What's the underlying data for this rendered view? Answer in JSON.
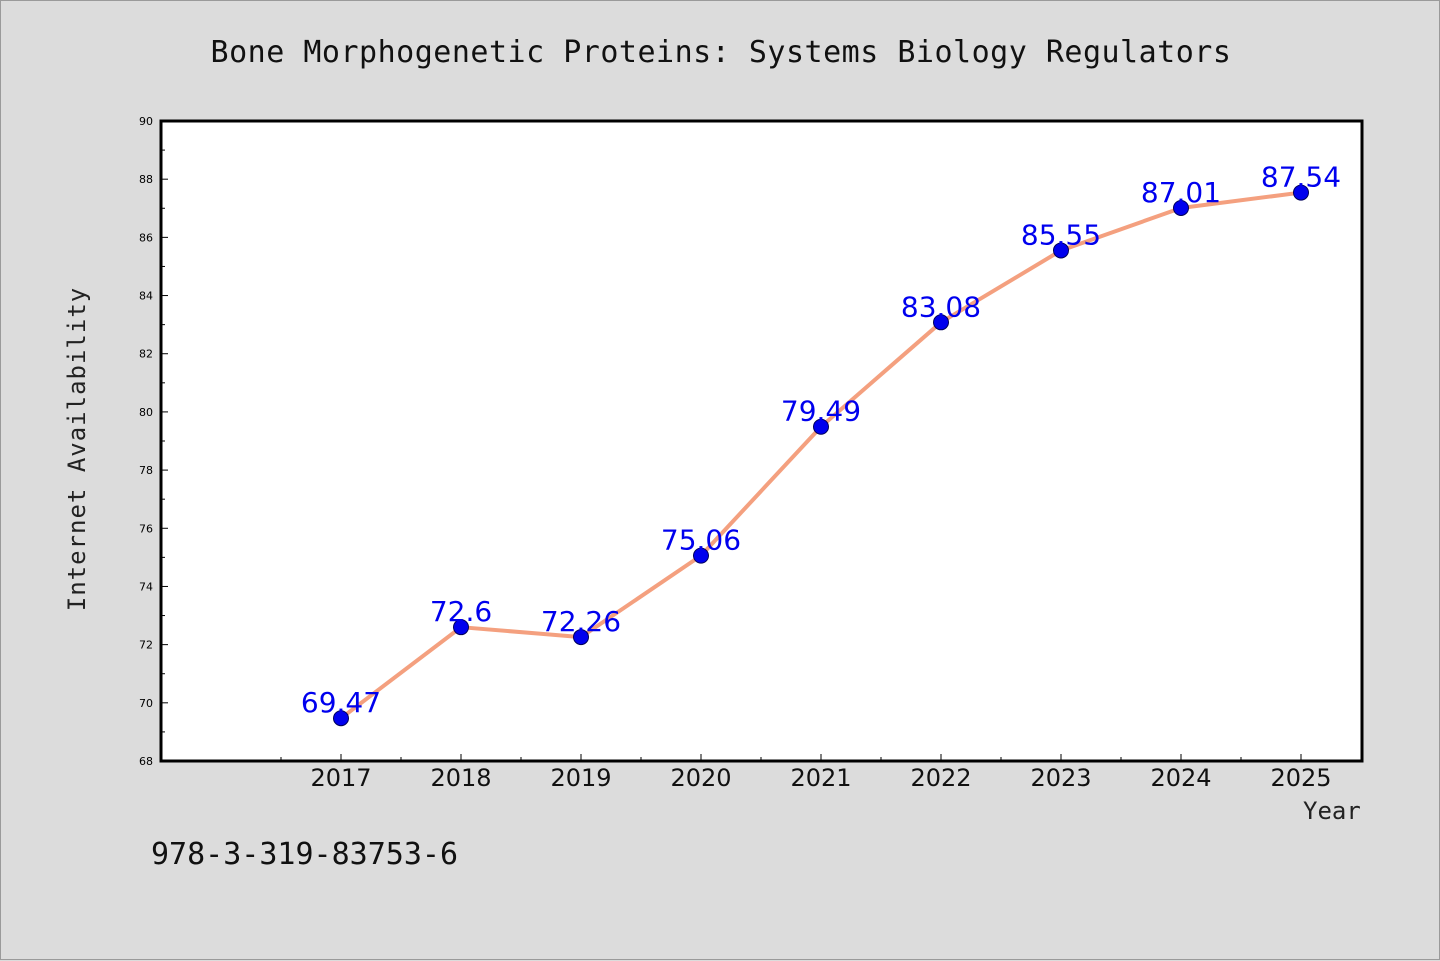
{
  "isbn": "978-3-319-83753-6",
  "chart_data": {
    "type": "line",
    "title": "Bone Morphogenetic Proteins: Systems Biology Regulators",
    "xlabel": "Year",
    "ylabel": "Internet Availability",
    "categories": [
      "2017",
      "2018",
      "2019",
      "2020",
      "2021",
      "2022",
      "2023",
      "2024",
      "2025"
    ],
    "series": [
      {
        "values": [
          69.47,
          72.6,
          72.26,
          75.06,
          79.49,
          83.08,
          85.55,
          87.01,
          87.54
        ],
        "labels": [
          "69.47",
          "72.6",
          "72.26",
          "75.06",
          "79.49",
          "83.08",
          "85.55",
          "87.01",
          "87.54"
        ],
        "line_color": "#f4a07f",
        "marker_color": "#0000ee"
      }
    ],
    "ylim": [
      68,
      90
    ],
    "yticks": [
      "68",
      "70",
      "72",
      "74",
      "76",
      "78",
      "80",
      "82",
      "84",
      "86",
      "88",
      "90"
    ],
    "grid": false,
    "legend": false
  }
}
